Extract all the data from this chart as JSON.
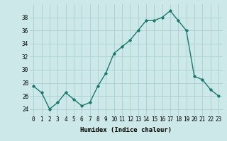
{
  "xlabel": "Humidex (Indice chaleur)",
  "x": [
    0,
    1,
    2,
    3,
    4,
    5,
    6,
    7,
    8,
    9,
    10,
    11,
    12,
    13,
    14,
    15,
    16,
    17,
    18,
    19,
    20,
    21,
    22,
    23
  ],
  "y": [
    27.5,
    26.5,
    24.0,
    25.0,
    26.5,
    25.5,
    24.5,
    25.0,
    27.5,
    29.5,
    32.5,
    33.5,
    34.5,
    36.0,
    37.5,
    37.5,
    38.0,
    39.0,
    37.5,
    36.0,
    29.0,
    28.5,
    27.0,
    26.0
  ],
  "ylim": [
    23,
    40
  ],
  "yticks": [
    24,
    26,
    28,
    30,
    32,
    34,
    36,
    38
  ],
  "line_color": "#1a7a6e",
  "marker": "D",
  "markersize": 1.8,
  "linewidth": 1.0,
  "bg_color": "#cce8e8",
  "grid_color": "#aad0d0",
  "tick_fontsize": 5.5,
  "label_fontsize": 6.5
}
